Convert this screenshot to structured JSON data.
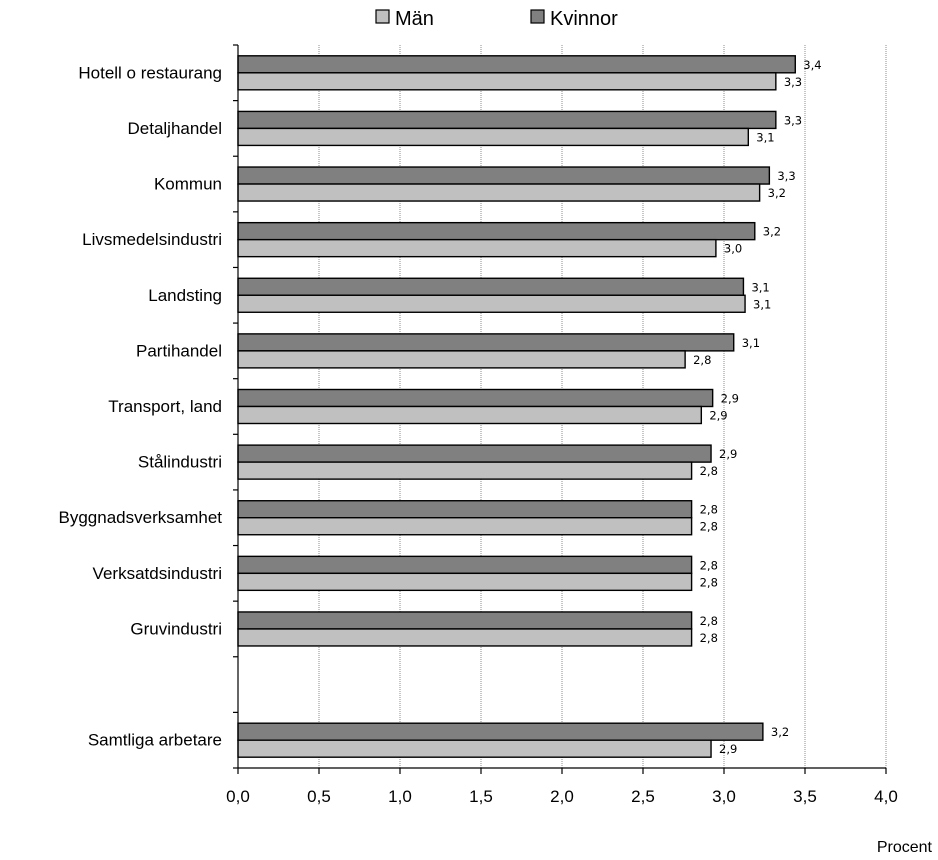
{
  "chart_data": {
    "type": "bar",
    "orientation": "horizontal",
    "categories": [
      "Hotell o restaurang",
      "Detaljhandel",
      "Kommun",
      "Livsmedelsindustri",
      "Landsting",
      "Partihandel",
      "Transport, land",
      "Stålindustri",
      "Byggnadsverksamhet",
      "Verksatdsindustri",
      "Gruvindustri",
      "",
      "Samtliga arbetare"
    ],
    "series": [
      {
        "name": "Kvinnor",
        "color": "#808080",
        "values": [
          3.44,
          3.32,
          3.28,
          3.19,
          3.12,
          3.06,
          2.93,
          2.92,
          2.8,
          2.8,
          2.8,
          null,
          3.24
        ],
        "labels": [
          "3,4",
          "3,3",
          "3,3",
          "3,2",
          "3,1",
          "3,1",
          "2,9",
          "2,9",
          "2,8",
          "2,8",
          "2,8",
          "",
          "3,2"
        ]
      },
      {
        "name": "Män",
        "color": "#c0c0c0",
        "values": [
          3.32,
          3.15,
          3.22,
          2.95,
          3.13,
          2.76,
          2.86,
          2.8,
          2.8,
          2.8,
          2.8,
          null,
          2.92
        ],
        "labels": [
          "3,3",
          "3,1",
          "3,2",
          "3,0",
          "3,1",
          "2,8",
          "2,9",
          "2,8",
          "2,8",
          "2,8",
          "2,8",
          "",
          "2,9"
        ]
      }
    ],
    "xlim": [
      0,
      4.0
    ],
    "xticks": [
      "0,0",
      "0,5",
      "1,0",
      "1,5",
      "2,0",
      "2,5",
      "3,0",
      "3,5",
      "4,0"
    ],
    "xlabel": "Procent",
    "legend": {
      "position": "top",
      "entries": [
        "Män",
        "Kvinnor"
      ]
    },
    "grid": "vertical"
  }
}
